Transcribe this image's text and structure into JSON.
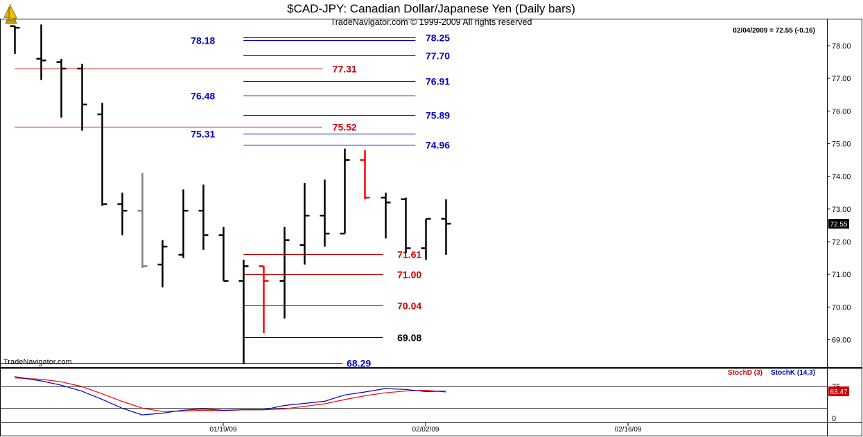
{
  "header": {
    "title": "$CAD-JPY:  Canadian Dollar/Japanese Yen  (Daily bars)",
    "subtitle": "TradeNavigator.com © 1999-2009 All rights reserved",
    "readout": "02/04/2009 = 72.55 (-0.16)",
    "watermark": "TradeNavigator.com",
    "logo": "sailboat-logo-icon"
  },
  "colors": {
    "up_bar": "#000000",
    "down_bar": "#ff0000",
    "neutral_bar": "#808080",
    "blue_level": "#0000cc",
    "red_level": "#cc0000",
    "black_level": "#000000",
    "stoch_d": "#ff0000",
    "stoch_k": "#0000cc",
    "price_box": "#000000",
    "stoch_box": "#cc0000"
  },
  "chart_data": [
    {
      "type": "ohlc",
      "title": "$CAD-JPY:  Canadian Dollar/Japanese Yen  (Daily bars)",
      "ylim": [
        67.7,
        78.6
      ],
      "y_ticks": [
        "78.00",
        "77.00",
        "76.00",
        "75.00",
        "74.00",
        "73.00",
        "72.00",
        "71.00",
        "70.00",
        "69.00"
      ],
      "y_tick_values": [
        78,
        77,
        76,
        75,
        74,
        73,
        72,
        71,
        70,
        69
      ],
      "x_ticks": [
        "01/19/09",
        "02/02/09",
        "02/16/09"
      ],
      "x_tick_bar_index": [
        10,
        20,
        30
      ],
      "n_slots": 40,
      "last_price_label": "72.55",
      "last_price": 72.55,
      "bars": [
        {
          "i": -0.3,
          "o": 78.6,
          "h": 78.6,
          "l": 77.75,
          "c": 78.55,
          "color": "black"
        },
        {
          "i": 1,
          "o": 77.6,
          "h": 78.65,
          "l": 76.95,
          "c": 77.55,
          "color": "black"
        },
        {
          "i": 2,
          "o": 77.5,
          "h": 77.6,
          "l": 75.8,
          "c": 77.3,
          "color": "black"
        },
        {
          "i": 3,
          "o": 77.3,
          "h": 77.45,
          "l": 75.4,
          "c": 76.2,
          "color": "black"
        },
        {
          "i": 4,
          "o": 75.9,
          "h": 76.25,
          "l": 73.1,
          "c": 73.15,
          "color": "black"
        },
        {
          "i": 5,
          "o": 73.15,
          "h": 73.5,
          "l": 72.2,
          "c": 72.95,
          "color": "black"
        },
        {
          "i": 6,
          "o": 72.95,
          "h": 74.1,
          "l": 71.2,
          "c": 71.25,
          "color": "gray"
        },
        {
          "i": 7,
          "o": 71.3,
          "h": 72.05,
          "l": 70.6,
          "c": 71.85,
          "color": "black"
        },
        {
          "i": 8,
          "o": 71.6,
          "h": 73.6,
          "l": 71.5,
          "c": 72.95,
          "color": "black"
        },
        {
          "i": 9,
          "o": 72.95,
          "h": 73.75,
          "l": 71.75,
          "c": 72.2,
          "color": "black"
        },
        {
          "i": 10,
          "o": 72.2,
          "h": 72.45,
          "l": 70.8,
          "c": 70.8,
          "color": "black"
        },
        {
          "i": 11,
          "o": 70.8,
          "h": 71.45,
          "l": 68.25,
          "c": 71.25,
          "color": "black"
        },
        {
          "i": 12,
          "o": 71.25,
          "h": 71.25,
          "l": 69.2,
          "c": 70.8,
          "color": "red"
        },
        {
          "i": 13,
          "o": 70.8,
          "h": 72.45,
          "l": 69.65,
          "c": 72.05,
          "color": "black"
        },
        {
          "i": 14,
          "o": 71.9,
          "h": 73.8,
          "l": 71.3,
          "c": 72.8,
          "color": "black"
        },
        {
          "i": 15,
          "o": 72.8,
          "h": 73.9,
          "l": 71.85,
          "c": 72.25,
          "color": "black"
        },
        {
          "i": 16,
          "o": 72.25,
          "h": 74.85,
          "l": 72.25,
          "c": 74.5,
          "color": "black"
        },
        {
          "i": 17,
          "o": 74.5,
          "h": 74.8,
          "l": 73.3,
          "c": 73.35,
          "color": "red"
        },
        {
          "i": 18,
          "o": 73.35,
          "h": 73.5,
          "l": 72.1,
          "c": 73.2,
          "color": "black"
        },
        {
          "i": 19,
          "o": 73.3,
          "h": 73.35,
          "l": 71.65,
          "c": 71.8,
          "color": "black"
        },
        {
          "i": 20,
          "o": 71.8,
          "h": 72.7,
          "l": 71.45,
          "c": 72.7,
          "color": "black"
        },
        {
          "i": 21,
          "o": 72.7,
          "h": 73.3,
          "l": 71.6,
          "c": 72.55,
          "color": "black"
        }
      ],
      "levels": [
        {
          "value": 78.25,
          "label": "78.25",
          "color": "blue",
          "x0": 11,
          "x1": 19.5,
          "label_slot": 20
        },
        {
          "value": 78.18,
          "label": "78.18",
          "color": "blue",
          "x0": 11,
          "x1": 19.5,
          "label_slot": 9.6,
          "label_left": true
        },
        {
          "value": 77.7,
          "label": "77.70",
          "color": "blue",
          "x0": 11,
          "x1": 19.5,
          "label_slot": 20
        },
        {
          "value": 77.31,
          "label": "77.31",
          "color": "red",
          "x0": -0.3,
          "x1": 14.9,
          "label_slot": 15.4
        },
        {
          "value": 76.91,
          "label": "76.91",
          "color": "blue",
          "x0": 11,
          "x1": 19.5,
          "label_slot": 20
        },
        {
          "value": 76.48,
          "label": "76.48",
          "color": "blue",
          "x0": 11,
          "x1": 19.5,
          "label_slot": 9.6,
          "label_left": true
        },
        {
          "value": 75.89,
          "label": "75.89",
          "color": "blue",
          "x0": 11,
          "x1": 19.5,
          "label_slot": 20
        },
        {
          "value": 75.52,
          "label": "75.52",
          "color": "red",
          "x0": -0.3,
          "x1": 14.9,
          "label_slot": 15.4
        },
        {
          "value": 75.31,
          "label": "75.31",
          "color": "blue",
          "x0": 11,
          "x1": 19.5,
          "label_slot": 9.6,
          "label_left": true
        },
        {
          "value": 74.96,
          "label": "74.96",
          "color": "blue",
          "x0": 11,
          "x1": 19.5,
          "label_slot": 20
        },
        {
          "value": 71.61,
          "label": "71.61",
          "color": "red",
          "x0": 11,
          "x1": 17.9,
          "label_slot": 18.6
        },
        {
          "value": 71.0,
          "label": "71.00",
          "color": "red",
          "x0": 11,
          "x1": 17.9,
          "label_slot": 18.6
        },
        {
          "value": 70.04,
          "label": "70.04",
          "color": "red",
          "x0": 11,
          "x1": 17.9,
          "label_slot": 18.6
        },
        {
          "value": 69.08,
          "label": "69.08",
          "color": "black",
          "x0": 11,
          "x1": 17.9,
          "label_slot": 18.6
        },
        {
          "value": 68.29,
          "label": "68.29",
          "color": "blue",
          "x0": -1,
          "x1": 15.9,
          "label_slot": 16.1
        }
      ]
    },
    {
      "type": "line",
      "ylim": [
        -10,
        100
      ],
      "y_ticks": [
        "75",
        "0"
      ],
      "y_tick_values": [
        75,
        0
      ],
      "guide_lines": [
        75,
        25
      ],
      "last_value_label": "63.47",
      "last_value": 63.47,
      "series": [
        {
          "name": "StochD (3)",
          "color": "red",
          "values": [
            [
              -0.3,
              95
            ],
            [
              1,
              92
            ],
            [
              2,
              86
            ],
            [
              3,
              75
            ],
            [
              4,
              58
            ],
            [
              5,
              40
            ],
            [
              6,
              24
            ],
            [
              7,
              16
            ],
            [
              8,
              17
            ],
            [
              9,
              19
            ],
            [
              10,
              18
            ],
            [
              11,
              20
            ],
            [
              12,
              20
            ],
            [
              13,
              22
            ],
            [
              14,
              28
            ],
            [
              15,
              34
            ],
            [
              16,
              44
            ],
            [
              17,
              53
            ],
            [
              18,
              60
            ],
            [
              19,
              64
            ],
            [
              20,
              66
            ],
            [
              21,
              62
            ]
          ]
        },
        {
          "name": "StochK (14,3)",
          "color": "blue",
          "values": [
            [
              -0.3,
              98
            ],
            [
              1,
              88
            ],
            [
              2,
              78
            ],
            [
              3,
              64
            ],
            [
              4,
              45
            ],
            [
              5,
              24
            ],
            [
              6,
              8
            ],
            [
              7,
              12
            ],
            [
              8,
              19
            ],
            [
              9,
              22
            ],
            [
              10,
              19
            ],
            [
              11,
              20
            ],
            [
              12,
              20
            ],
            [
              13,
              30
            ],
            [
              14,
              35
            ],
            [
              15,
              40
            ],
            [
              16,
              55
            ],
            [
              17,
              62
            ],
            [
              18,
              70
            ],
            [
              19,
              68
            ],
            [
              20,
              63
            ],
            [
              21,
              64
            ]
          ]
        }
      ]
    }
  ]
}
